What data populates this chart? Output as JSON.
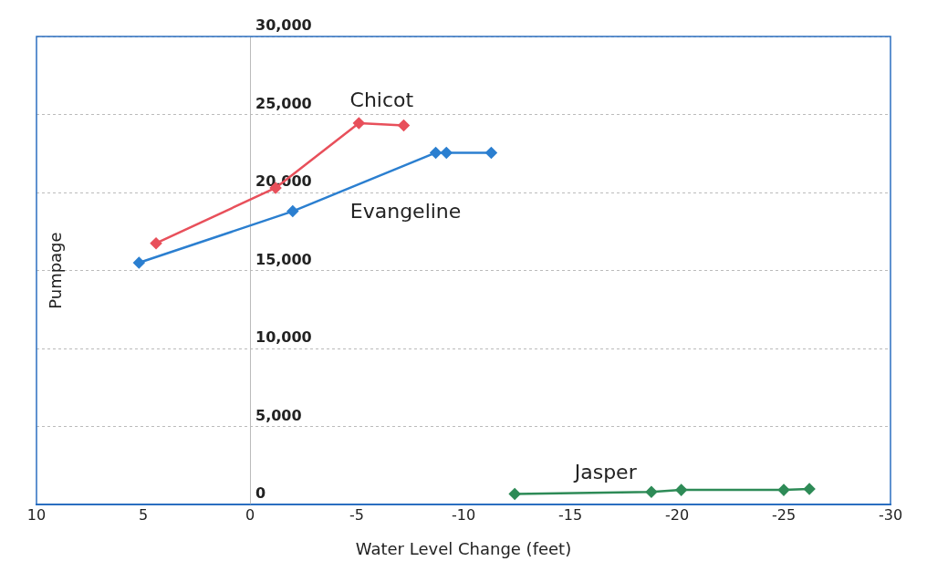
{
  "chart_data": {
    "type": "line",
    "xlabel": "Water Level Change (feet)",
    "ylabel": "Pumpage",
    "xlim": [
      10,
      -30
    ],
    "xticks": [
      10,
      5,
      0,
      -5,
      -10,
      -15,
      -20,
      -25,
      -30
    ],
    "ylim": [
      0,
      30000
    ],
    "yticks": [
      {
        "value": 0,
        "label": "0"
      },
      {
        "value": 5000,
        "label": "5,000"
      },
      {
        "value": 10000,
        "label": "10,000"
      },
      {
        "value": 15000,
        "label": "15,000"
      },
      {
        "value": 20000,
        "label": "20,000"
      },
      {
        "value": 25000,
        "label": "25,000"
      },
      {
        "value": 30000,
        "label": "30,000"
      }
    ],
    "grid": "y",
    "legend": false,
    "marker": "diamond",
    "line_style": "solid",
    "series": [
      {
        "name": "Chicot",
        "color": "#e8505b",
        "x": [
          4.4,
          -1.2,
          -5.1,
          -7.2
        ],
        "values": [
          16750,
          20300,
          24450,
          24300
        ]
      },
      {
        "name": "Evangeline",
        "color": "#2b7fd0",
        "x": [
          5.2,
          -2.0,
          -8.7,
          -9.2,
          -11.3
        ],
        "values": [
          15500,
          18800,
          22550,
          22550,
          22550
        ]
      },
      {
        "name": "Jasper",
        "color": "#2e8b57",
        "x": [
          -12.4,
          -18.8,
          -20.2,
          -25.0,
          -26.2
        ],
        "values": [
          690,
          810,
          940,
          940,
          1000
        ]
      }
    ]
  }
}
